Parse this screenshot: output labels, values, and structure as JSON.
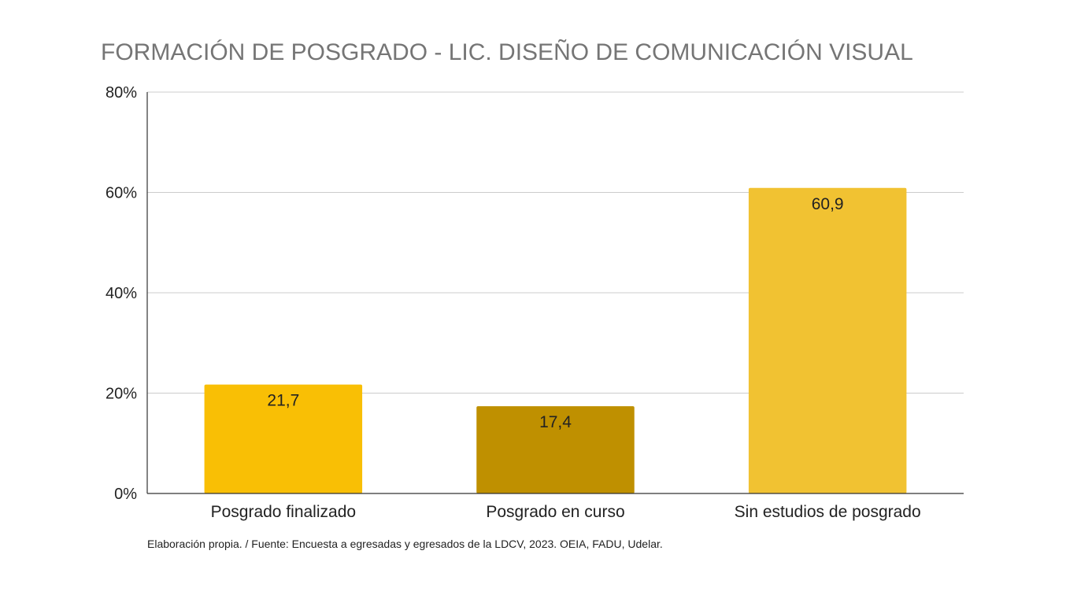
{
  "chart_data": {
    "type": "bar",
    "title": "FORMACIÓN DE POSGRADO -  LIC. DISEÑO DE COMUNICACIÓN VISUAL",
    "categories": [
      "Posgrado finalizado",
      "Posgrado en curso",
      "Sin estudios de posgrado"
    ],
    "values": [
      21.7,
      17.4,
      60.9
    ],
    "data_labels": [
      "21,7",
      "17,4",
      "60,9"
    ],
    "bar_colors": [
      "#f9bf05",
      "#bf9000",
      "#f1c232"
    ],
    "ylim": [
      0,
      80
    ],
    "yticks": [
      0,
      20,
      40,
      60,
      80
    ],
    "ytick_labels": [
      "0%",
      "20%",
      "40%",
      "60%",
      "80%"
    ],
    "grid": true,
    "legend": "none"
  },
  "footnote": "Elaboración propia. / Fuente: Encuesta a egresadas y egresados de la LDCV, 2023. OEIA, FADU, Udelar."
}
